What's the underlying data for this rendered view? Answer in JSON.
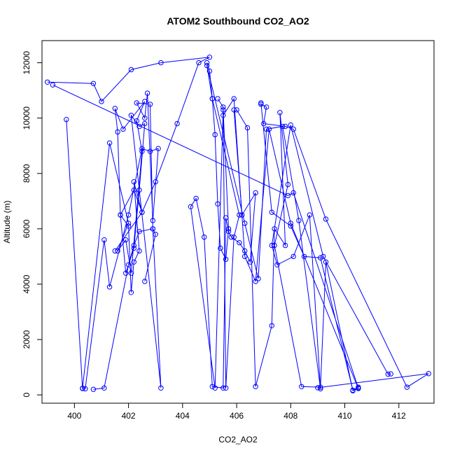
{
  "chart_data": {
    "type": "scatter",
    "title": "ATOM2 Southbound CO2_AO2",
    "xlabel": "CO2_AO2",
    "ylabel": "Altitude (m)",
    "xlim": [
      398.8,
      413.3
    ],
    "ylim": [
      -300,
      12800
    ],
    "x_ticks": [
      400,
      402,
      404,
      406,
      408,
      410,
      412
    ],
    "y_ticks": [
      0,
      2000,
      4000,
      6000,
      8000,
      10000,
      12000
    ],
    "grid": false,
    "legend": "none",
    "markers": "open circles connected by lines",
    "color": "#0000ff",
    "series": [
      {
        "x": [
          399.0,
          400.7,
          401.0,
          402.1,
          403.2,
          405.0,
          404.6,
          403.8,
          403.0,
          402.5,
          402.2,
          402.4,
          402.2,
          402.1,
          402.0,
          401.7,
          401.6,
          401.5,
          401.8,
          402.6,
          402.3,
          402.5,
          402.1,
          401.9,
          401.6,
          402.0,
          401.3,
          400.3
        ],
        "y": [
          11300,
          11250,
          10600,
          11750,
          12000,
          12200,
          12000,
          9800,
          7700,
          6600,
          7700,
          5200,
          4800,
          3700,
          6100,
          6500,
          9500,
          10350,
          9600,
          10600,
          9900,
          8800,
          4400,
          5600,
          5200,
          6200,
          9100,
          240
        ]
      },
      {
        "x": [
          399.7,
          400.3,
          400.4,
          401.1,
          401.3,
          402.0,
          402.5,
          402.8,
          403.1,
          402.9,
          402.7,
          402.6,
          402.3,
          402.8,
          402.9,
          402.4,
          402.2,
          402.0,
          401.1,
          400.7
        ],
        "y": [
          9950,
          230,
          220,
          5600,
          3900,
          6500,
          8900,
          8800,
          8900,
          6300,
          10900,
          10000,
          10550,
          10500,
          6000,
          5900,
          5400,
          4700,
          250,
          200
        ]
      },
      {
        "x": [
          401.5,
          402.5,
          402.2,
          401.7,
          401.9,
          402.2,
          402.4,
          402.6,
          402.4,
          402.1,
          403.2,
          402.9,
          403.0,
          402.6
        ],
        "y": [
          5200,
          6600,
          7400,
          6500,
          4400,
          5300,
          7400,
          9800,
          9700,
          10100,
          250,
          6000,
          5800,
          4100
        ]
      },
      {
        "x": [
          399.2,
          407.9,
          408.1,
          410.5,
          410.5,
          410.3,
          409.1,
          408.5,
          408.0,
          407.3,
          406.9,
          406.9,
          407.1,
          407.0,
          407.8,
          408.1,
          409.3,
          412.3,
          413.1,
          409.0
        ],
        "y": [
          11200,
          7200,
          7300,
          250,
          280,
          170,
          4950,
          5000,
          6100,
          6600,
          10550,
          10500,
          10400,
          9800,
          9700,
          9600,
          6350,
          280,
          770,
          260
        ]
      },
      {
        "x": [
          404.9,
          405.0,
          405.1,
          405.2,
          405.3,
          405.4,
          405.6,
          405.7,
          405.5,
          405.2,
          404.3,
          404.5,
          404.8,
          405.1,
          405.5,
          405.6,
          405.7,
          405.8,
          406.1,
          406.3,
          406.5,
          406.7,
          406.2,
          405.9
        ],
        "y": [
          12000,
          11700,
          10700,
          9400,
          6900,
          5300,
          4900,
          6000,
          10300,
          250,
          6800,
          7100,
          5700,
          300,
          250,
          6400,
          5900,
          5700,
          5500,
          5200,
          4800,
          7300,
          6500,
          10300
        ]
      },
      {
        "x": [
          406.0,
          406.4,
          406.7,
          407.3,
          407.4,
          407.8,
          407.6,
          407.9,
          407.4,
          408.4,
          409.1,
          409.3,
          410.3,
          410.5,
          408.0,
          407.2,
          406.7,
          406.3,
          405.9,
          405.5
        ],
        "y": [
          10300,
          9650,
          300,
          2500,
          6000,
          5400,
          10200,
          7600,
          5400,
          300,
          280,
          4800,
          150,
          230,
          6200,
          9600,
          4100,
          5000,
          10700,
          10100
        ]
      },
      {
        "x": [
          405.3,
          405.5,
          405.6,
          405.9,
          406.1,
          405.1,
          404.9,
          406.3,
          406.8,
          407.1,
          407.7,
          408.3,
          409.1,
          408.7,
          408.1,
          407.5,
          407.3,
          408.0,
          409.2,
          411.6,
          411.7
        ],
        "y": [
          10700,
          10400,
          250,
          5700,
          6500,
          10700,
          11900,
          6200,
          4200,
          9600,
          9700,
          6300,
          220,
          6500,
          5000,
          4700,
          5400,
          9750,
          5000,
          750,
          760
        ]
      }
    ]
  }
}
